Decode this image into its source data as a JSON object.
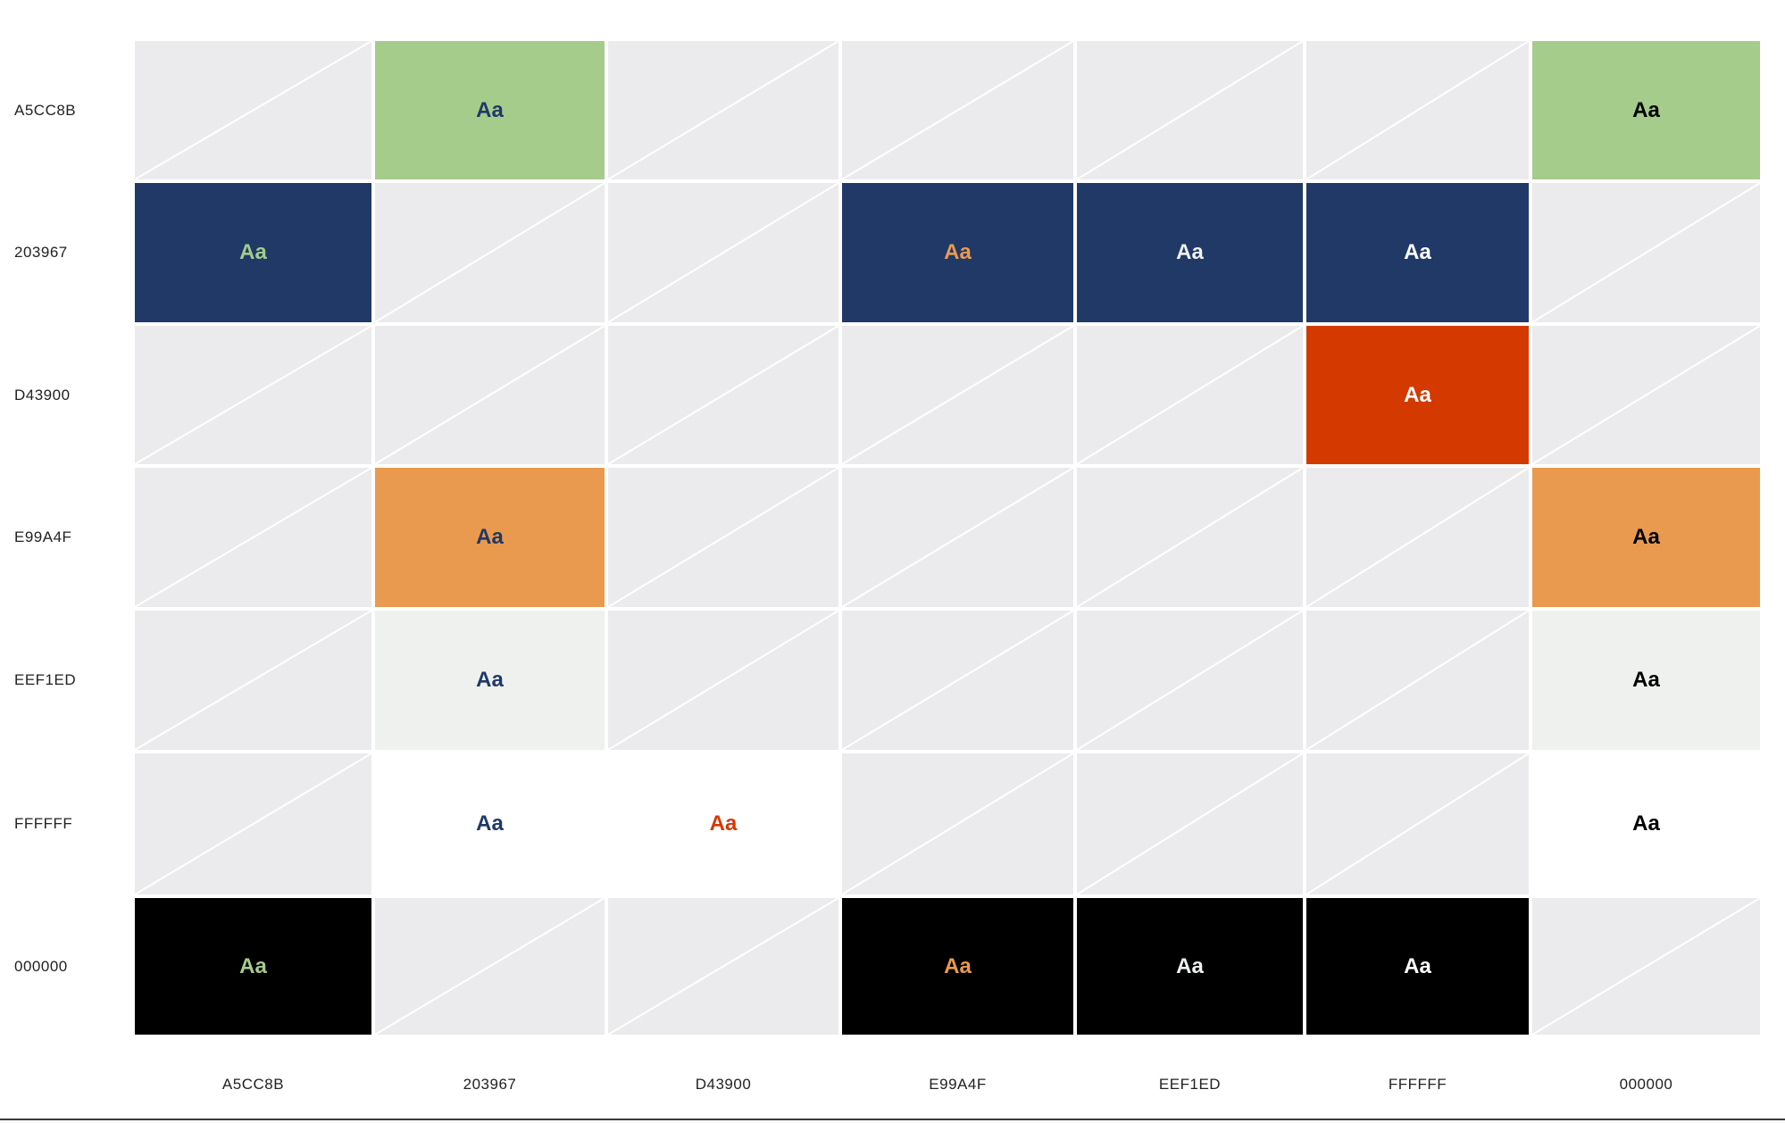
{
  "chart_data": {
    "type": "heatmap",
    "title": "",
    "rows": [
      "A5CC8B",
      "203967",
      "D43900",
      "E99A4F",
      "EEF1ED",
      "FFFFFF",
      "000000"
    ],
    "columns": [
      "A5CC8B",
      "203967",
      "D43900",
      "E99A4F",
      "EEF1ED",
      "FFFFFF",
      "000000"
    ],
    "sample_text": "Aa",
    "empty_color": "#EBEBED",
    "cells": [
      [
        null,
        "Aa",
        null,
        null,
        null,
        null,
        "Aa"
      ],
      [
        "Aa",
        null,
        null,
        "Aa",
        "Aa",
        "Aa",
        null
      ],
      [
        null,
        null,
        null,
        null,
        null,
        "Aa",
        null
      ],
      [
        null,
        "Aa",
        null,
        null,
        null,
        null,
        "Aa"
      ],
      [
        null,
        "Aa",
        null,
        null,
        null,
        null,
        "Aa"
      ],
      [
        null,
        "Aa",
        "Aa",
        null,
        null,
        null,
        "Aa"
      ],
      [
        "Aa",
        null,
        null,
        "Aa",
        "Aa",
        "Aa",
        null
      ]
    ]
  }
}
